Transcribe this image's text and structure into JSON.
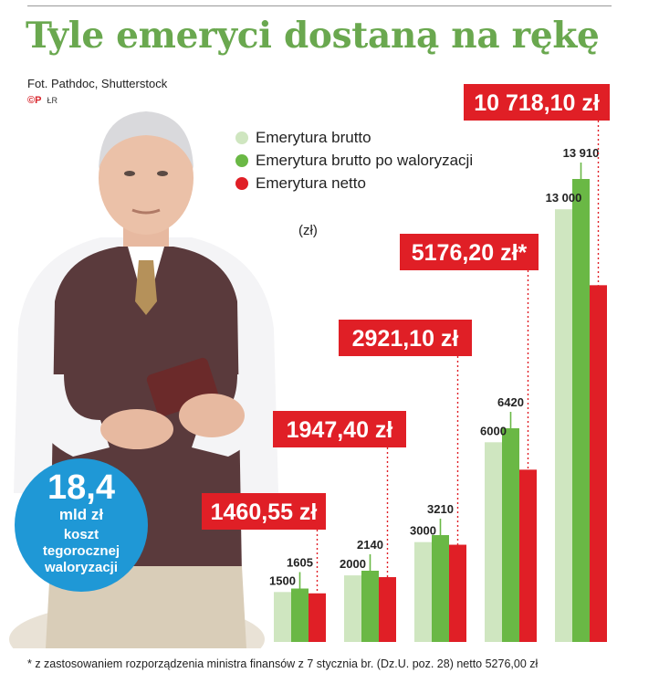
{
  "header": {
    "title": "Tyle emeryci dostaną na rękę",
    "photo_credit": "Fot. Pathdoc, Shutterstock",
    "copyright_mark": "©P",
    "author_initials": "ŁR"
  },
  "bubble": {
    "value": "18,4",
    "unit": "mld zł",
    "desc_line1": "koszt",
    "desc_line2": "tegorocznej",
    "desc_line3": "waloryzacji"
  },
  "colors": {
    "brutto": "#cfe6c0",
    "brutto_waloryzacja": "#6ab845",
    "netto": "#e01f26",
    "accent_blue": "#1f98d6",
    "title_green": "#6aa84f"
  },
  "footnote": "* z zastosowaniem rozporządzenia ministra finansów z 7 stycznia br. (Dz.U. poz. 28) netto 5276,00 zł",
  "chart_data": {
    "type": "bar",
    "unit": "(zł)",
    "series": [
      {
        "name": "Emerytura brutto",
        "values": [
          1500,
          2000,
          3000,
          6000,
          13000
        ],
        "labels": [
          "1500",
          "2000",
          "3000",
          "6000",
          "13 000"
        ]
      },
      {
        "name": "Emerytura brutto po waloryzacji",
        "values": [
          1605,
          2140,
          3210,
          6420,
          13910
        ],
        "labels": [
          "1605",
          "2140",
          "3210",
          "6420",
          "13 910"
        ]
      },
      {
        "name": "Emerytura netto",
        "values": [
          1460.55,
          1947.4,
          2921.1,
          5176.2,
          10718.1
        ],
        "labels": [
          "1460,55 zł",
          "1947,40 zł",
          "2921,10 zł",
          "5176,20 zł*",
          "10 718,10 zł"
        ]
      }
    ],
    "ylim": [
      0,
      13910
    ]
  }
}
